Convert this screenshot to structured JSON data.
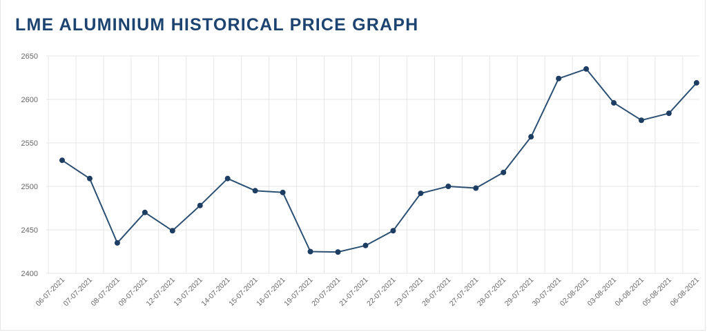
{
  "chart_data": {
    "type": "line",
    "title": "LME ALUMINIUM HISTORICAL PRICE GRAPH",
    "xlabel": "",
    "ylabel": "",
    "ylim": [
      2400,
      2650
    ],
    "yticks": [
      2400,
      2450,
      2500,
      2550,
      2600,
      2650
    ],
    "grid": true,
    "legend": "none",
    "colors": {
      "line": "#2b4f72",
      "marker": "#1d3d63",
      "grid": "#e6e6e6",
      "title": "#1d4470"
    },
    "categories": [
      "06-07-2021",
      "07-07-2021",
      "08-07-2021",
      "09-07-2021",
      "12-07-2021",
      "13-07-2021",
      "14-07-2021",
      "15-07-2021",
      "16-07-2021",
      "19-07-2021",
      "20-07-2021",
      "21-07-2021",
      "22-07-2021",
      "23-07-2021",
      "26-07-2021",
      "27-07-2021",
      "28-07-2021",
      "29-07-2021",
      "30-07-2021",
      "02-08-2021",
      "03-08-2021",
      "04-08-2021",
      "05-08-2021",
      "06-08-2021"
    ],
    "series": [
      {
        "values": [
          2530,
          2509,
          2435,
          2470,
          2449,
          2478,
          2509,
          2495,
          2493,
          2425,
          2424.5,
          2432,
          2449,
          2492,
          2500,
          2498,
          2516,
          2557,
          2624,
          2635,
          2596,
          2576,
          2584,
          2619
        ]
      }
    ]
  }
}
